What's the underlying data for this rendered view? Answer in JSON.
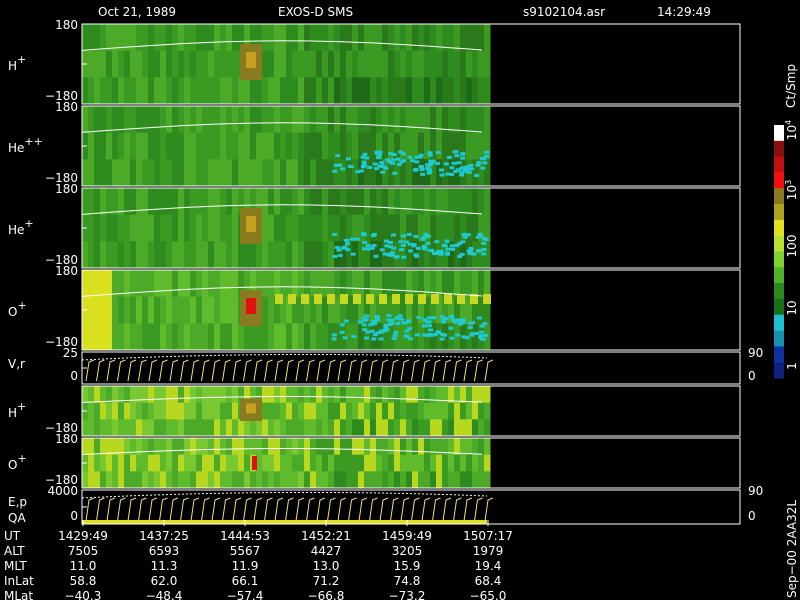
{
  "header": {
    "date": "Oct 21, 1989",
    "instrument": "EXOS-D SMS",
    "file": "s9102104.asr",
    "time": "14:29:49"
  },
  "panels": [
    {
      "label": "H",
      "sup": "+",
      "top": "180",
      "bottom": "−180"
    },
    {
      "label": "He",
      "sup": "++",
      "top": "180",
      "bottom": "−180"
    },
    {
      "label": "He",
      "sup": "+",
      "top": "180",
      "bottom": "−180"
    },
    {
      "label": "O",
      "sup": "+",
      "top": "180",
      "bottom": "−180"
    },
    {
      "label": "V,r",
      "top": "25",
      "bottom": "0",
      "right_top": "90",
      "right_bottom": "0"
    },
    {
      "label": "H",
      "sup": "+",
      "bottom": "−180"
    },
    {
      "label": "O",
      "sup": "+",
      "top": "180",
      "bottom": "−180"
    },
    {
      "label": "E,p",
      "label2": "QA",
      "top": "4000",
      "bottom": "0",
      "right_top": "90",
      "right_bottom": "0"
    }
  ],
  "colorbar": {
    "unit": "Ct/Smp",
    "ticks": [
      {
        "base": "10",
        "exp": "4"
      },
      {
        "base": "10",
        "exp": "3"
      },
      {
        "text": "100"
      },
      {
        "text": "10"
      },
      {
        "text": "1"
      }
    ]
  },
  "table": {
    "rows": [
      {
        "label": "UT",
        "values": [
          "1429:49",
          "1437:25",
          "1444:53",
          "1452:21",
          "1459:49",
          "1507:17"
        ]
      },
      {
        "label": "ALT",
        "values": [
          "7505",
          "6593",
          "5567",
          "4427",
          "3205",
          "1979"
        ]
      },
      {
        "label": "MLT",
        "values": [
          "11.0",
          "11.3",
          "11.9",
          "13.0",
          "15.9",
          "19.4"
        ]
      },
      {
        "label": "InLat",
        "values": [
          "58.8",
          "62.0",
          "66.1",
          "71.2",
          "74.8",
          "68.4"
        ]
      },
      {
        "label": "MLat",
        "values": [
          "−40.3",
          "−48.4",
          "−57.4",
          "−66.8",
          "−73.2",
          "−65.0"
        ]
      }
    ]
  },
  "footer": "Sep−00 2AA32L"
}
